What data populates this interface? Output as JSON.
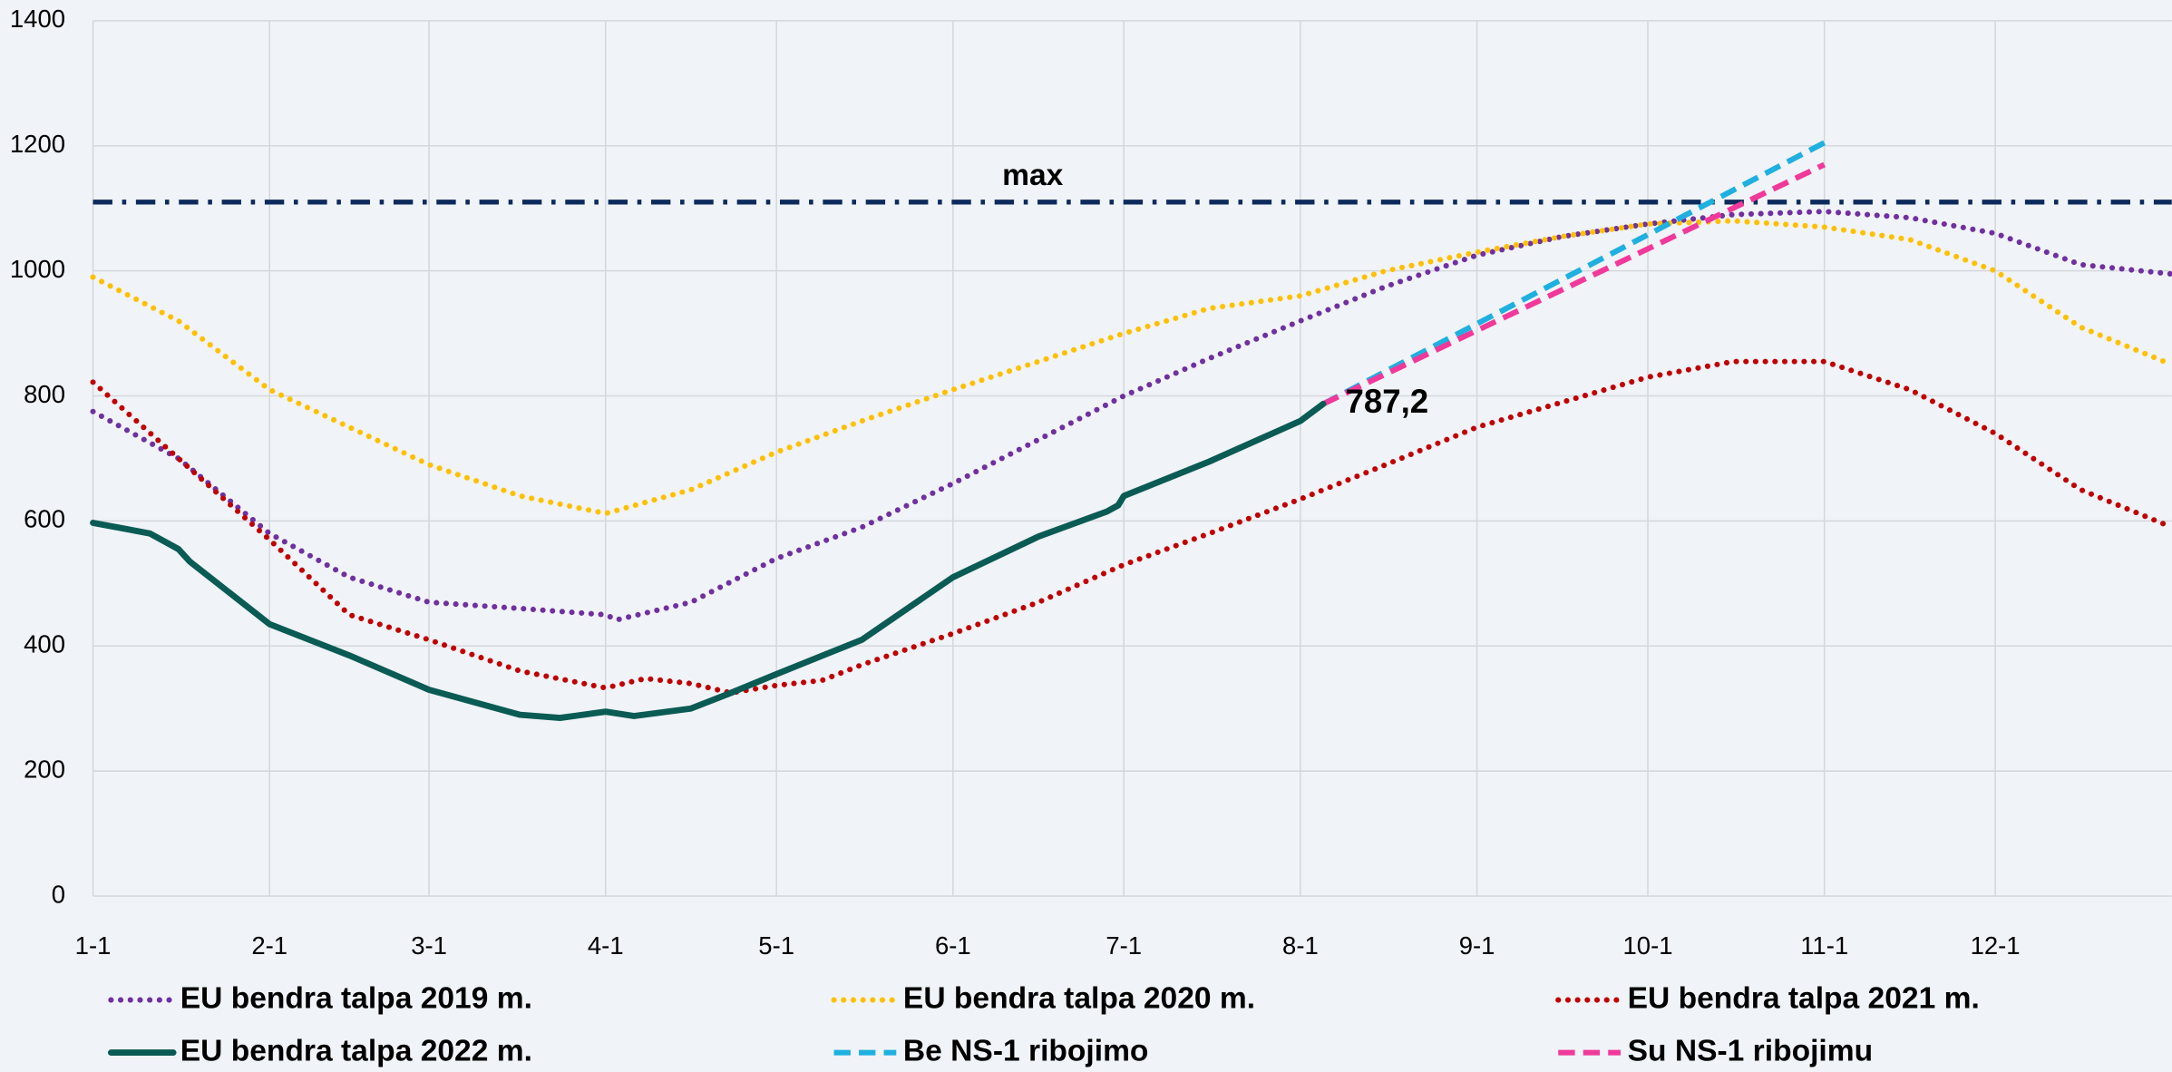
{
  "chart_data": {
    "type": "line",
    "xlim": [
      0,
      365
    ],
    "xticks": [
      {
        "value": 0,
        "label": "1-1"
      },
      {
        "value": 31,
        "label": "2-1"
      },
      {
        "value": 59,
        "label": "3-1"
      },
      {
        "value": 90,
        "label": "4-1"
      },
      {
        "value": 120,
        "label": "5-1"
      },
      {
        "value": 151,
        "label": "6-1"
      },
      {
        "value": 181,
        "label": "7-1"
      },
      {
        "value": 212,
        "label": "8-1"
      },
      {
        "value": 243,
        "label": "9-1"
      },
      {
        "value": 273,
        "label": "10-1"
      },
      {
        "value": 304,
        "label": "11-1"
      },
      {
        "value": 334,
        "label": "12-1"
      }
    ],
    "ylim": [
      0,
      1400
    ],
    "yticks": [
      0,
      200,
      400,
      600,
      800,
      1000,
      1200,
      1400
    ],
    "grid": true,
    "legend": "bottom",
    "max_line": {
      "label": "max",
      "value": 1110,
      "color": "#0d2a5c",
      "x": 165
    },
    "series": [
      {
        "name": "EU bendra talpa 2019 m.",
        "color": "#7030a0",
        "dash": "dotted",
        "x": [
          0,
          15,
          31,
          45,
          59,
          75,
          90,
          92,
          105,
          120,
          135,
          151,
          166,
          181,
          196,
          212,
          227,
          243,
          258,
          273,
          288,
          304,
          319,
          334,
          349,
          365
        ],
        "values": [
          775,
          700,
          580,
          510,
          470,
          460,
          450,
          442,
          470,
          540,
          590,
          660,
          730,
          800,
          860,
          920,
          975,
          1025,
          1055,
          1075,
          1090,
          1095,
          1085,
          1060,
          1010,
          995
        ]
      },
      {
        "name": "EU bendra talpa 2020 m.",
        "color": "#ffc000",
        "dash": "dotted",
        "x": [
          0,
          15,
          31,
          45,
          59,
          75,
          90,
          105,
          120,
          135,
          151,
          166,
          181,
          196,
          212,
          227,
          243,
          258,
          273,
          288,
          304,
          319,
          334,
          349,
          365
        ],
        "values": [
          990,
          920,
          810,
          750,
          690,
          640,
          612,
          650,
          710,
          760,
          810,
          855,
          900,
          940,
          960,
          1000,
          1030,
          1055,
          1075,
          1080,
          1070,
          1050,
          1000,
          910,
          850
        ]
      },
      {
        "name": "EU bendra talpa 2021 m.",
        "color": "#c00000",
        "dash": "dotted",
        "x": [
          0,
          15,
          31,
          45,
          59,
          75,
          90,
          97,
          105,
          112,
          120,
          128,
          135,
          151,
          166,
          181,
          196,
          212,
          227,
          243,
          258,
          273,
          288,
          304,
          319,
          334,
          349,
          365
        ],
        "values": [
          822,
          700,
          570,
          450,
          410,
          360,
          333,
          348,
          340,
          325,
          337,
          345,
          370,
          420,
          470,
          530,
          580,
          635,
          690,
          750,
          790,
          830,
          855,
          855,
          810,
          740,
          650,
          590
        ]
      },
      {
        "name": "EU bendra talpa 2022 m.",
        "color": "#0b5b55",
        "dash": "solid",
        "x": [
          0,
          10,
          15,
          17,
          31,
          45,
          59,
          75,
          82,
          90,
          95,
          105,
          112,
          120,
          135,
          151,
          166,
          178,
          180,
          181,
          196,
          212,
          216
        ],
        "values": [
          597,
          580,
          555,
          535,
          435,
          385,
          330,
          290,
          285,
          295,
          288,
          300,
          325,
          355,
          410,
          510,
          575,
          615,
          625,
          640,
          695,
          760,
          787.2
        ],
        "value_labels": [
          null,
          null,
          null,
          null,
          null,
          null,
          null,
          null,
          null,
          null,
          null,
          null,
          null,
          null,
          null,
          null,
          null,
          null,
          null,
          null,
          null,
          null,
          "787,2"
        ]
      },
      {
        "name": "Be NS-1 ribojimo",
        "color": "#1fb0e0",
        "dash": "dashed",
        "x": [
          216,
          304
        ],
        "values": [
          787.2,
          1205
        ]
      },
      {
        "name": "Su NS-1 ribojimu",
        "color": "#f0399a",
        "dash": "dashed",
        "x": [
          216,
          304
        ],
        "values": [
          787.2,
          1170
        ]
      }
    ]
  }
}
